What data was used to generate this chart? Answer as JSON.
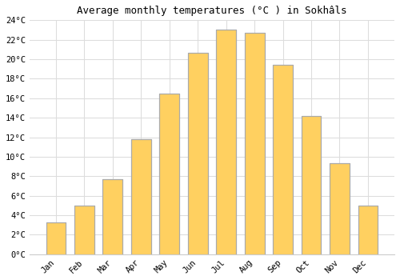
{
  "title": "Average monthly temperatures (°C ) in Sokhâls",
  "months": [
    "Jan",
    "Feb",
    "Mar",
    "Apr",
    "May",
    "Jun",
    "Jul",
    "Aug",
    "Sep",
    "Oct",
    "Nov",
    "Dec"
  ],
  "values": [
    3.3,
    5.0,
    7.7,
    11.8,
    16.5,
    20.7,
    23.0,
    22.7,
    19.4,
    14.2,
    9.3,
    5.0
  ],
  "bar_color": "#FFA500",
  "bar_highlight": "#FFD060",
  "bar_edge_color": "#aaaaaa",
  "ylim": [
    0,
    24
  ],
  "yticks": [
    0,
    2,
    4,
    6,
    8,
    10,
    12,
    14,
    16,
    18,
    20,
    22,
    24
  ],
  "ytick_labels": [
    "0°C",
    "2°C",
    "4°C",
    "6°C",
    "8°C",
    "10°C",
    "12°C",
    "14°C",
    "16°C",
    "18°C",
    "20°C",
    "22°C",
    "24°C"
  ],
  "background_color": "#ffffff",
  "grid_color": "#dddddd",
  "title_fontsize": 9,
  "tick_fontsize": 7.5,
  "figsize": [
    5.0,
    3.5
  ],
  "dpi": 100
}
